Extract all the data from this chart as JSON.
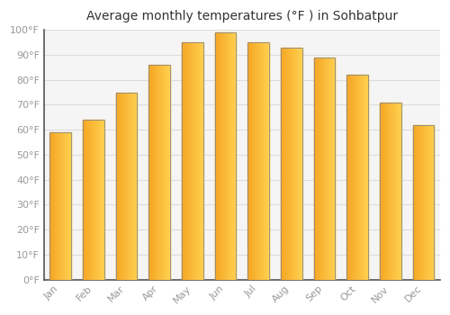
{
  "title": "Average monthly temperatures (°F ) in Sohbatpur",
  "months": [
    "Jan",
    "Feb",
    "Mar",
    "Apr",
    "May",
    "Jun",
    "Jul",
    "Aug",
    "Sep",
    "Oct",
    "Nov",
    "Dec"
  ],
  "values": [
    59,
    64,
    75,
    86,
    95,
    99,
    95,
    93,
    89,
    82,
    71,
    62
  ],
  "bar_color_left": "#F5A623",
  "bar_color_right": "#FFD966",
  "bar_edge_color": "#888888",
  "background_color": "#FFFFFF",
  "plot_bg_color": "#F5F5F5",
  "grid_color": "#DDDDDD",
  "ylim": [
    0,
    100
  ],
  "yticks": [
    0,
    10,
    20,
    30,
    40,
    50,
    60,
    70,
    80,
    90,
    100
  ],
  "ytick_labels": [
    "0°F",
    "10°F",
    "20°F",
    "30°F",
    "40°F",
    "50°F",
    "60°F",
    "70°F",
    "80°F",
    "90°F",
    "100°F"
  ],
  "title_fontsize": 10,
  "tick_fontsize": 8,
  "tick_color": "#999999",
  "title_color": "#333333",
  "bar_width": 0.65
}
